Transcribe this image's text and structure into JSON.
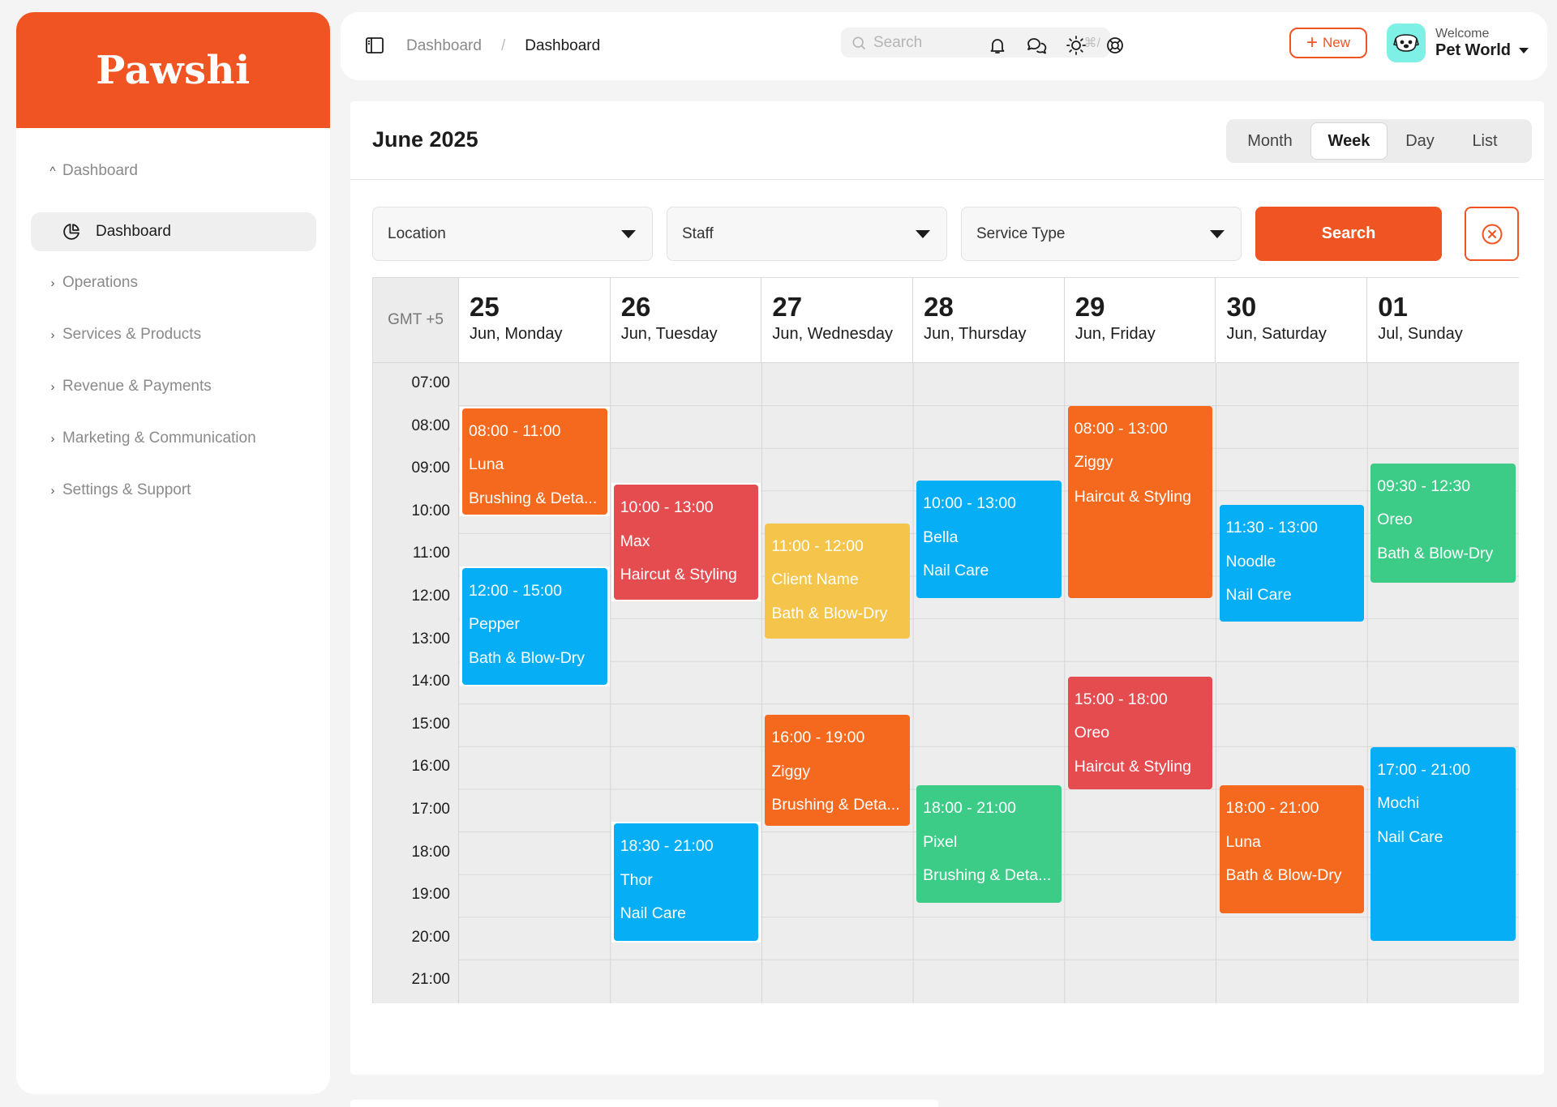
{
  "brand": {
    "logo_text": "Pawshi",
    "accent": "#f05423"
  },
  "sidebar": {
    "groups": [
      {
        "label": "Dashboard",
        "open": true,
        "chevron": "chevron-up-icon"
      },
      {
        "label": "Operations",
        "chevron": "chevron-right-icon"
      },
      {
        "label": "Services & Products",
        "chevron": "chevron-right-icon"
      },
      {
        "label": "Revenue & Payments",
        "chevron": "chevron-right-icon"
      },
      {
        "label": "Marketing & Communication",
        "chevron": "chevron-right-icon"
      },
      {
        "label": "Settings & Support",
        "chevron": "chevron-right-icon"
      }
    ],
    "active_item": {
      "label": "Dashboard",
      "icon": "pie-chart-icon"
    }
  },
  "header": {
    "breadcrumb": [
      "Dashboard",
      "Dashboard"
    ],
    "breadcrumb_separator": "/",
    "search": {
      "placeholder": "Search",
      "shortcut": "⌘/"
    },
    "icons": [
      "bell-icon",
      "chat-icon",
      "sun-icon",
      "lifebuoy-icon"
    ],
    "new_button": "New",
    "user": {
      "welcome": "Welcome",
      "name": "Pet World"
    }
  },
  "calendar": {
    "title": "June 2025",
    "views": [
      "Month",
      "Week",
      "Day",
      "List"
    ],
    "active_view": "Week",
    "filters": {
      "location": "Location",
      "staff": "Staff",
      "service_type": "Service Type"
    },
    "search_button": "Search",
    "timezone": "GMT +5",
    "days": [
      {
        "num": "25",
        "label": "Jun, Monday"
      },
      {
        "num": "26",
        "label": "Jun, Tuesday"
      },
      {
        "num": "27",
        "label": "Jun, Wednesday"
      },
      {
        "num": "28",
        "label": "Jun, Thursday"
      },
      {
        "num": "29",
        "label": "Jun, Friday"
      },
      {
        "num": "30",
        "label": "Jun, Saturday"
      },
      {
        "num": "01",
        "label": "Jul, Sunday"
      }
    ],
    "hours": [
      "07:00",
      "08:00",
      "09:00",
      "10:00",
      "11:00",
      "12:00",
      "13:00",
      "14:00",
      "15:00",
      "16:00",
      "17:00",
      "18:00",
      "19:00",
      "20:00",
      "21:00"
    ],
    "colors": {
      "orange": "#f5691e",
      "red": "#e44c50",
      "blue": "#05aef5",
      "yellow": "#f4c54a",
      "green": "#3dcc88"
    },
    "events": [
      {
        "day": 0,
        "start": 8.0,
        "end": 10.5,
        "time": "08:00 - 11:00",
        "pet": "Luna",
        "service": "Brushing & Deta...",
        "color": "orange"
      },
      {
        "day": 0,
        "start": 11.75,
        "end": 14.5,
        "time": "12:00 - 15:00",
        "pet": "Pepper",
        "service": "Bath & Blow-Dry",
        "color": "blue"
      },
      {
        "day": 1,
        "start": 9.8,
        "end": 12.5,
        "time": "10:00 - 13:00",
        "pet": "Max",
        "service": "Haircut & Styling",
        "color": "red"
      },
      {
        "day": 1,
        "start": 17.75,
        "end": 20.5,
        "time": "18:30 - 21:00",
        "pet": "Thor",
        "service": "Nail Care",
        "color": "blue"
      },
      {
        "day": 2,
        "start": 10.7,
        "end": 13.4,
        "time": "11:00 - 12:00",
        "pet": "Client Name",
        "service": "Bath & Blow-Dry",
        "color": "yellow"
      },
      {
        "day": 2,
        "start": 15.2,
        "end": 17.8,
        "time": "16:00 - 19:00",
        "pet": "Ziggy",
        "service": "Brushing & Deta...",
        "color": "orange"
      },
      {
        "day": 3,
        "start": 9.7,
        "end": 12.45,
        "time": "10:00 - 13:00",
        "pet": "Bella",
        "service": "Nail Care",
        "color": "blue"
      },
      {
        "day": 3,
        "start": 16.85,
        "end": 19.6,
        "time": "18:00 - 21:00",
        "pet": "Pixel",
        "service": "Brushing & Deta...",
        "color": "green"
      },
      {
        "day": 4,
        "start": 7.95,
        "end": 12.45,
        "time": "08:00 - 13:00",
        "pet": "Ziggy",
        "service": "Haircut & Styling",
        "color": "orange",
        "wrap": true
      },
      {
        "day": 4,
        "start": 14.3,
        "end": 16.95,
        "time": "15:00 - 18:00",
        "pet": "Oreo",
        "service": "Haircut & Styling",
        "color": "red"
      },
      {
        "day": 5,
        "start": 10.27,
        "end": 13.0,
        "time": "11:30 - 13:00",
        "pet": "Noodle",
        "service": "Nail Care",
        "color": "blue"
      },
      {
        "day": 5,
        "start": 16.85,
        "end": 19.85,
        "time": "18:00 - 21:00",
        "pet": "Luna",
        "service": "Bath & Blow-Dry",
        "color": "orange"
      },
      {
        "day": 6,
        "start": 9.3,
        "end": 12.1,
        "time": "09:30 - 12:30",
        "pet": "Oreo",
        "service": "Bath & Blow-Dry",
        "color": "green"
      },
      {
        "day": 6,
        "start": 15.95,
        "end": 20.5,
        "time": "17:00 - 21:00",
        "pet": "Mochi",
        "service": "Nail Care",
        "color": "blue"
      }
    ]
  }
}
